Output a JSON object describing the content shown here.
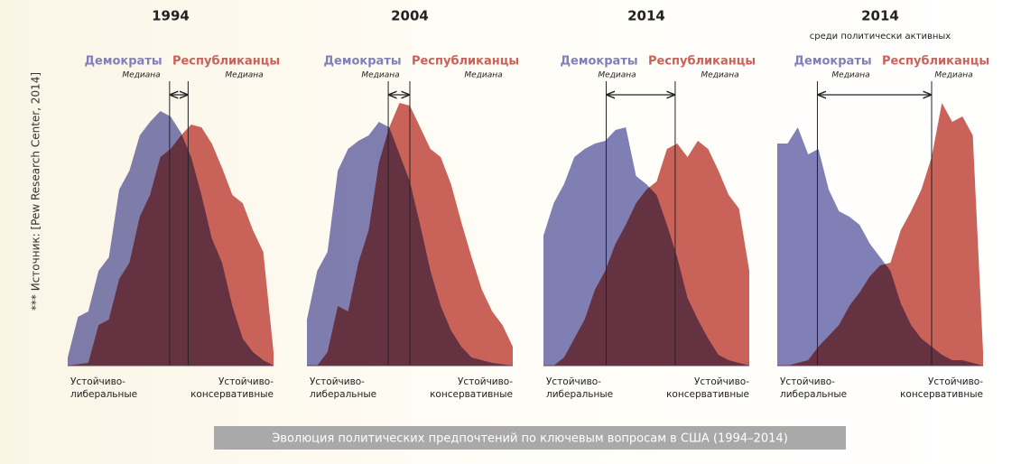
{
  "source": "*** Источник: [Pew Research Center, 2014]",
  "caption": "Эволюция политических предпочтений по ключевым вопросам в США (1994–2014)",
  "chart_data": [
    {
      "type": "area",
      "title": "1994",
      "x": [
        0,
        1,
        2,
        3,
        4,
        5,
        6,
        7,
        8,
        9,
        10,
        11,
        12,
        13,
        14,
        15,
        16,
        17,
        18,
        19,
        20
      ],
      "xlim": [
        0,
        20
      ],
      "ylim": [
        0,
        100
      ],
      "x_labels": [
        [
          "Устойчиво-",
          "либеральные"
        ],
        [
          "Устойчиво-",
          "консервативные"
        ]
      ],
      "series": [
        {
          "name": "Демократы",
          "color": "#8080b8",
          "median": 9.9,
          "median_label": "Медиана",
          "values": [
            3,
            18,
            20,
            35,
            40,
            65,
            72,
            85,
            90,
            94,
            92,
            86,
            77,
            63,
            47,
            38,
            22,
            10,
            5,
            2,
            0
          ]
        },
        {
          "name": "Республиканцы",
          "color": "#c9635a",
          "median": 11.7,
          "median_label": "Медиана",
          "values": [
            0,
            0.5,
            1,
            15,
            17,
            32,
            38,
            55,
            63,
            77,
            80,
            85,
            89,
            88,
            82,
            73,
            63,
            60,
            50,
            42,
            5
          ]
        }
      ]
    },
    {
      "type": "area",
      "title": "2004",
      "x": [
        0,
        1,
        2,
        3,
        4,
        5,
        6,
        7,
        8,
        9,
        10,
        11,
        12,
        13,
        14,
        15,
        16,
        17,
        18,
        19,
        20
      ],
      "xlim": [
        0,
        20
      ],
      "ylim": [
        0,
        100
      ],
      "x_labels": [
        [
          "Устойчиво-",
          "либеральные"
        ],
        [
          "Устойчиво-",
          "консервативные"
        ]
      ],
      "series": [
        {
          "name": "Демократы",
          "color": "#8080b8",
          "median": 7.9,
          "median_label": "Медиана",
          "values": [
            17,
            35,
            42,
            72,
            80,
            83,
            85,
            90,
            88,
            78,
            68,
            52,
            35,
            22,
            13,
            7,
            3,
            2,
            1,
            0.5,
            0
          ]
        },
        {
          "name": "Республиканцы",
          "color": "#c9635a",
          "median": 10.0,
          "median_label": "Медиана",
          "values": [
            0,
            0,
            5,
            22,
            20,
            38,
            50,
            75,
            88,
            97,
            96,
            88,
            80,
            77,
            67,
            53,
            40,
            28,
            20,
            15,
            7
          ]
        }
      ]
    },
    {
      "type": "area",
      "title": "2014",
      "x": [
        0,
        1,
        2,
        3,
        4,
        5,
        6,
        7,
        8,
        9,
        10,
        11,
        12,
        13,
        14,
        15,
        16,
        17,
        18,
        19,
        20
      ],
      "xlim": [
        0,
        20
      ],
      "ylim": [
        0,
        100
      ],
      "x_labels": [
        [
          "Устойчиво-",
          "либеральные"
        ],
        [
          "Устойчиво-",
          "консервативные"
        ]
      ],
      "series": [
        {
          "name": "Демократы",
          "color": "#8080b8",
          "median": 6.1,
          "median_label": "Медиана",
          "values": [
            48,
            60,
            67,
            77,
            80,
            82,
            83,
            87,
            88,
            70,
            67,
            63,
            52,
            40,
            25,
            17,
            10,
            4,
            2,
            1,
            0
          ]
        },
        {
          "name": "Республиканцы",
          "color": "#c9635a",
          "median": 12.8,
          "median_label": "Медиана",
          "values": [
            0,
            0,
            3,
            10,
            17,
            28,
            35,
            45,
            52,
            60,
            65,
            68,
            80,
            82,
            77,
            83,
            80,
            72,
            63,
            58,
            35
          ]
        }
      ]
    },
    {
      "type": "area",
      "title": "2014",
      "subtitle": "среди политически активных",
      "x": [
        0,
        1,
        2,
        3,
        4,
        5,
        6,
        7,
        8,
        9,
        10,
        11,
        12,
        13,
        14,
        15,
        16,
        17,
        18,
        19,
        20
      ],
      "xlim": [
        0,
        20
      ],
      "ylim": [
        0,
        100
      ],
      "x_labels": [
        [
          "Устойчиво-",
          "либеральные"
        ],
        [
          "Устойчиво-",
          "консервативные"
        ]
      ],
      "series": [
        {
          "name": "Демократы",
          "color": "#8080b8",
          "median": 3.9,
          "median_label": "Медиана",
          "values": [
            82,
            82,
            88,
            78,
            80,
            65,
            57,
            55,
            52,
            45,
            40,
            35,
            23,
            15,
            10,
            7,
            4,
            2,
            2,
            1,
            0
          ]
        },
        {
          "name": "Республиканцы",
          "color": "#c9635a",
          "median": 15.0,
          "median_label": "Медиана",
          "values": [
            0,
            0,
            1,
            2,
            7,
            11,
            15,
            22,
            27,
            33,
            37,
            38,
            50,
            57,
            65,
            77,
            97,
            90,
            92,
            85,
            5
          ]
        }
      ]
    }
  ]
}
